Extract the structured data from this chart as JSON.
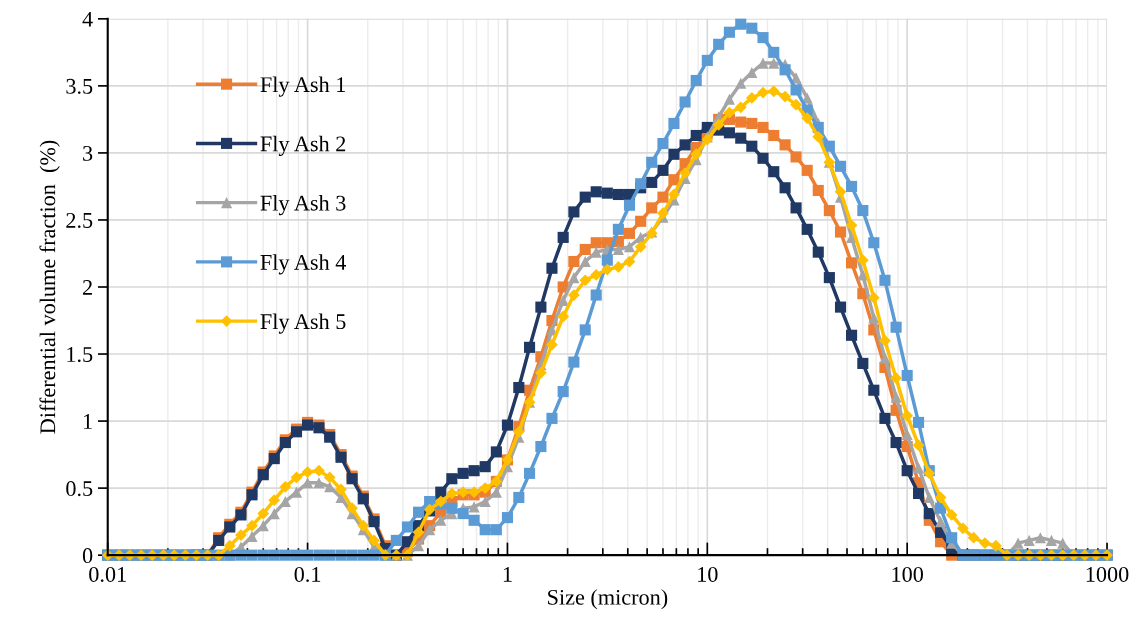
{
  "chart_data": {
    "type": "line",
    "xlabel": "Size (micron)",
    "ylabel": "Differential volume fraction  (%)",
    "log": "x",
    "grid": true,
    "legend": "top left",
    "xlim": [
      0.01,
      1000
    ],
    "xticks": [
      0.01,
      0.1,
      1,
      10,
      100,
      1000
    ],
    "ylim": [
      0,
      4
    ],
    "yticks": [
      0,
      0.5,
      1,
      1.5,
      2,
      2.5,
      3,
      3.5,
      4
    ],
    "x": [
      0.01,
      0.0114,
      0.0129,
      0.0147,
      0.0167,
      0.019,
      0.0215,
      0.0245,
      0.0278,
      0.0316,
      0.0359,
      0.0408,
      0.0464,
      0.0527,
      0.06,
      0.0681,
      0.0774,
      0.088,
      0.1,
      0.114,
      0.129,
      0.147,
      0.167,
      0.19,
      0.215,
      0.245,
      0.278,
      0.316,
      0.359,
      0.408,
      0.464,
      0.527,
      0.6,
      0.681,
      0.774,
      0.88,
      1,
      1.14,
      1.29,
      1.47,
      1.67,
      1.9,
      2.15,
      2.45,
      2.78,
      3.16,
      3.59,
      4.08,
      4.64,
      5.27,
      6,
      6.81,
      7.74,
      8.8,
      10,
      11.4,
      12.9,
      14.7,
      16.7,
      19,
      21.5,
      24.5,
      27.8,
      31.6,
      35.9,
      40.8,
      46.4,
      52.7,
      60,
      68.1,
      77.4,
      88,
      100,
      114,
      129,
      147,
      167,
      190,
      215,
      245,
      278,
      316,
      359,
      408,
      464,
      527,
      600,
      681,
      774,
      880,
      1000
    ],
    "series": [
      {
        "name": "Fly Ash 1",
        "color": "#ed7d31",
        "marker": "square",
        "values": [
          null,
          null,
          null,
          null,
          null,
          null,
          null,
          null,
          0,
          0,
          0.13,
          0.23,
          0.32,
          0.47,
          0.62,
          0.74,
          0.86,
          0.94,
          0.99,
          0.97,
          0.9,
          0.75,
          0.59,
          0.44,
          0.27,
          0.07,
          0,
          0.03,
          0.12,
          0.22,
          0.32,
          0.4,
          0.45,
          0.45,
          0.47,
          0.55,
          0.71,
          0.96,
          1.23,
          1.48,
          1.75,
          2,
          2.19,
          2.28,
          2.33,
          2.33,
          2.34,
          2.4,
          2.49,
          2.59,
          2.67,
          2.8,
          2.92,
          3.04,
          3.15,
          3.25,
          3.25,
          3.23,
          3.22,
          3.19,
          3.13,
          3.06,
          2.97,
          2.87,
          2.72,
          2.57,
          2.41,
          2.18,
          1.95,
          1.68,
          1.4,
          1.08,
          0.81,
          0.54,
          0.26,
          0.1,
          0,
          0,
          0,
          null,
          null,
          null,
          null,
          null,
          null,
          null,
          null,
          null,
          null,
          null,
          null
        ]
      },
      {
        "name": "Fly Ash 2",
        "color": "#203864",
        "marker": "square",
        "values": [
          0,
          0,
          0,
          0,
          0,
          0,
          0,
          0,
          0,
          0,
          0.11,
          0.21,
          0.3,
          0.45,
          0.6,
          0.72,
          0.84,
          0.92,
          0.97,
          0.95,
          0.88,
          0.73,
          0.57,
          0.42,
          0.25,
          0.05,
          0,
          0.1,
          0.22,
          0.33,
          0.47,
          0.57,
          0.61,
          0.63,
          0.66,
          0.77,
          0.97,
          1.25,
          1.55,
          1.85,
          2.14,
          2.37,
          2.56,
          2.67,
          2.71,
          2.7,
          2.69,
          2.69,
          2.74,
          2.78,
          2.87,
          2.99,
          3.06,
          3.13,
          3.19,
          3.17,
          3.15,
          3.11,
          3.05,
          2.96,
          2.86,
          2.74,
          2.59,
          2.43,
          2.26,
          2.07,
          1.85,
          1.64,
          1.43,
          1.23,
          1.02,
          0.84,
          0.63,
          0.46,
          0.31,
          0.17,
          0.05,
          0,
          0,
          0,
          0,
          0,
          0,
          0,
          0,
          0,
          0,
          0,
          0,
          0,
          0
        ]
      },
      {
        "name": "Fly Ash 3",
        "color": "#a5a5a5",
        "marker": "triangle",
        "values": [
          0,
          0,
          0,
          0,
          0,
          0,
          0,
          0,
          0,
          0,
          0,
          0,
          0.06,
          0.14,
          0.22,
          0.31,
          0.4,
          0.47,
          0.54,
          0.54,
          0.51,
          0.43,
          0.31,
          0.19,
          0.06,
          0,
          0,
          0,
          0.07,
          0.19,
          0.26,
          0.31,
          0.35,
          0.36,
          0.4,
          0.47,
          0.66,
          0.88,
          1.14,
          1.42,
          1.68,
          1.9,
          2.07,
          2.19,
          2.26,
          2.28,
          2.28,
          2.3,
          2.37,
          2.41,
          2.52,
          2.65,
          2.81,
          2.95,
          3.12,
          3.27,
          3.4,
          3.52,
          3.6,
          3.67,
          3.67,
          3.66,
          3.56,
          3.41,
          3.22,
          2.93,
          2.67,
          2.37,
          2.09,
          1.77,
          1.47,
          1.18,
          0.9,
          0.65,
          0.43,
          0.25,
          0.09,
          0,
          0,
          0,
          0,
          0,
          0.09,
          0.11,
          0.13,
          0.11,
          0.09,
          0,
          0,
          0,
          0
        ]
      },
      {
        "name": "Fly Ash 4",
        "color": "#5b9bd5",
        "marker": "square",
        "values": [
          0,
          0,
          0,
          0,
          0,
          0,
          0,
          0,
          0,
          0,
          0,
          0,
          0,
          0,
          0,
          0,
          0,
          0,
          0,
          0,
          0,
          0,
          0,
          0,
          0,
          0,
          0.11,
          0.21,
          0.32,
          0.4,
          0.38,
          0.35,
          0.31,
          0.26,
          0.19,
          0.19,
          0.28,
          0.43,
          0.61,
          0.81,
          1.02,
          1.22,
          1.44,
          1.68,
          1.94,
          2.2,
          2.43,
          2.61,
          2.77,
          2.93,
          3.07,
          3.22,
          3.38,
          3.54,
          3.69,
          3.81,
          3.9,
          3.96,
          3.93,
          3.86,
          3.75,
          3.62,
          3.47,
          3.32,
          3.19,
          3.05,
          2.9,
          2.75,
          2.57,
          2.33,
          2.05,
          1.7,
          1.34,
          0.99,
          0.63,
          0.35,
          0.13,
          0,
          0,
          0,
          0,
          0,
          0,
          0,
          0,
          0,
          0,
          0,
          0,
          0,
          0
        ]
      },
      {
        "name": "Fly Ash 5",
        "color": "#ffc000",
        "marker": "diamond",
        "values": [
          0,
          0,
          0,
          0,
          0,
          0,
          0,
          0,
          0,
          0,
          0,
          0.07,
          0.15,
          0.22,
          0.31,
          0.41,
          0.51,
          0.58,
          0.62,
          0.63,
          0.58,
          0.49,
          0.35,
          0.22,
          0.11,
          0,
          0,
          0,
          0.17,
          0.34,
          0.4,
          0.46,
          0.47,
          0.47,
          0.5,
          0.55,
          0.71,
          0.92,
          1.14,
          1.36,
          1.57,
          1.78,
          1.94,
          2.05,
          2.09,
          2.13,
          2.15,
          2.19,
          2.3,
          2.4,
          2.55,
          2.69,
          2.85,
          2.99,
          3.1,
          3.21,
          3.3,
          3.34,
          3.41,
          3.45,
          3.46,
          3.42,
          3.36,
          3.26,
          3.12,
          2.93,
          2.71,
          2.46,
          2.2,
          1.92,
          1.6,
          1.32,
          1.04,
          0.82,
          0.61,
          0.43,
          0.3,
          0.2,
          0.13,
          0.09,
          0.07,
          0,
          0,
          0,
          0,
          0,
          0,
          0,
          0,
          0,
          0
        ]
      }
    ]
  }
}
